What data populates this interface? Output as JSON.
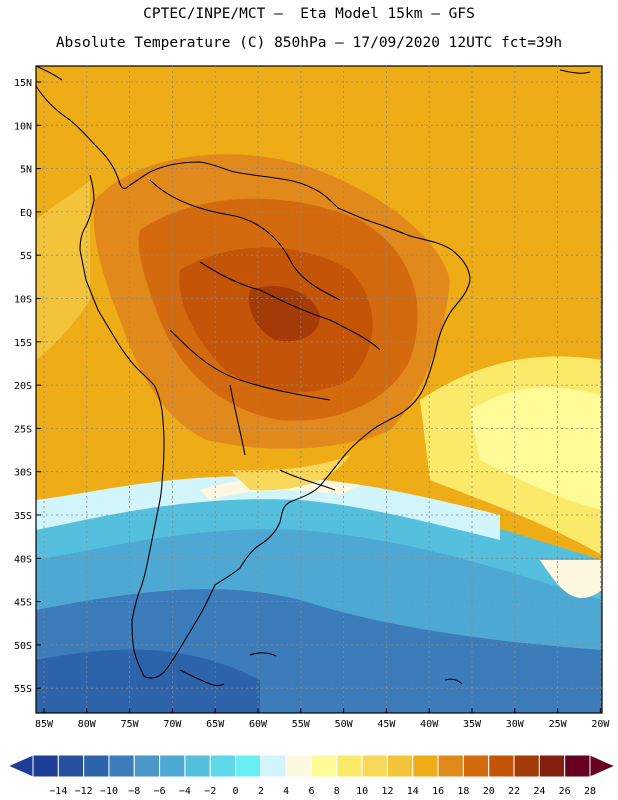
{
  "header": {
    "line1": "CPTEC/INPE/MCT –  Eta Model 15km – GFS",
    "line2": "Absolute Temperature (C) 850hPa – 17/09/2020 12UTC fct=39h"
  },
  "axes": {
    "lat_labels": [
      "15N",
      "10N",
      "5N",
      "EQ",
      "5S",
      "10S",
      "15S",
      "20S",
      "25S",
      "30S",
      "35S",
      "40S",
      "45S",
      "50S",
      "55S"
    ],
    "lon_labels": [
      "85W",
      "80W",
      "75W",
      "70W",
      "65W",
      "60W",
      "55W",
      "50W",
      "45W",
      "40W",
      "35W",
      "30W",
      "25W",
      "20W"
    ]
  },
  "colorbar": {
    "labels": [
      "-14",
      "-12",
      "-10",
      "-8",
      "-6",
      "-4",
      "-2",
      "0",
      "2",
      "4",
      "6",
      "8",
      "10",
      "12",
      "14",
      "16",
      "18",
      "20",
      "22",
      "24",
      "26",
      "28"
    ],
    "colors": [
      "#1c3f94",
      "#25519f",
      "#2d63aa",
      "#3d7cba",
      "#4a97c8",
      "#4ea8d4",
      "#55c0de",
      "#5fd9ea",
      "#66f0f4",
      "#d2f4fb",
      "#fff8e0",
      "#fffb96",
      "#fbe96a",
      "#f8d85a",
      "#f3c33a",
      "#eeac16",
      "#e2891c",
      "#d46a0e",
      "#c45508",
      "#a43a06",
      "#852010",
      "#660020"
    ]
  },
  "colors": {
    "land_outline": "#000000",
    "grid": "#888888"
  }
}
